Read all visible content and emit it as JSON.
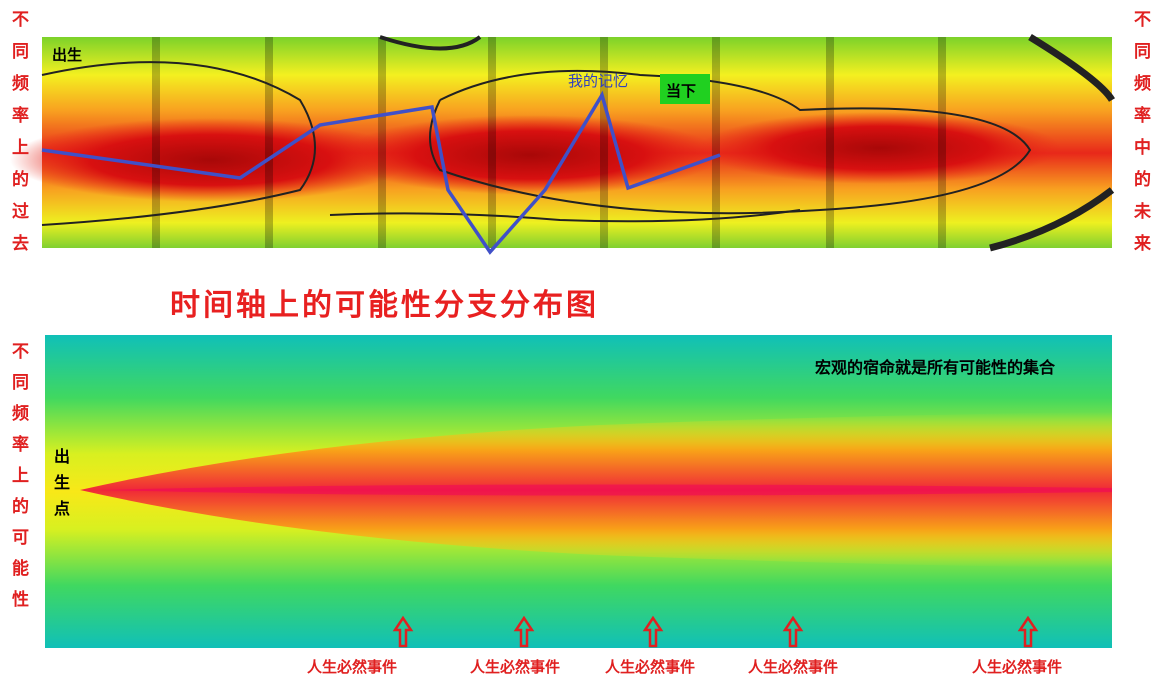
{
  "top_panel": {
    "left_label": "不同频率上的过去",
    "right_label": "不同频率中的未来",
    "birth": "出生",
    "memory": "我的记忆",
    "now": "当下"
  },
  "title": "时间轴上的可能性分支分布图",
  "bottom_panel": {
    "left_label": "不同频率上的可能性",
    "annotation": "宏观的宿命就是所有可能性的集合",
    "birth_point": "出生点",
    "events": [
      "人生必然事件",
      "人生必然事件",
      "人生必然事件",
      "人生必然事件",
      "人生必然事件"
    ]
  }
}
